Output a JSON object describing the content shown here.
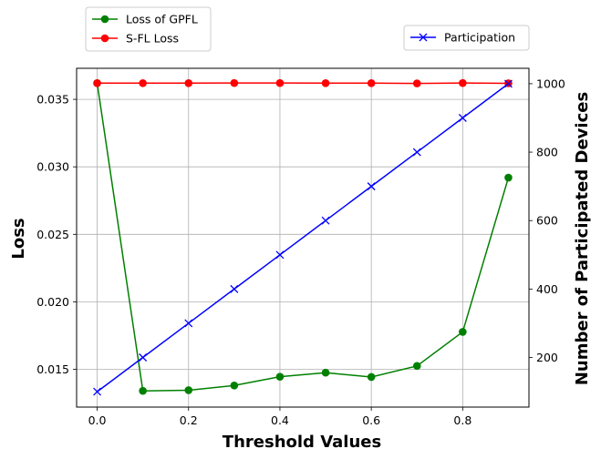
{
  "chart_data": {
    "type": "line",
    "xlabel": "Threshold Values",
    "ylabel_left": "Loss",
    "ylabel_right": "Number of Participated Devices",
    "x": [
      0.0,
      0.1,
      0.2,
      0.3,
      0.4,
      0.5,
      0.6,
      0.7,
      0.8,
      0.9
    ],
    "x_ticks": [
      "0.0",
      "0.2",
      "0.4",
      "0.6",
      "0.8"
    ],
    "x_tick_values": [
      0.0,
      0.2,
      0.4,
      0.6,
      0.8
    ],
    "xlim": [
      -0.045,
      0.945
    ],
    "ylim_left": [
      0.0122,
      0.0373
    ],
    "y_left_ticks": [
      "0.015",
      "0.020",
      "0.025",
      "0.030",
      "0.035"
    ],
    "y_left_tick_values": [
      0.015,
      0.02,
      0.025,
      0.03,
      0.035
    ],
    "ylim_right": [
      55,
      1045
    ],
    "y_right_ticks": [
      "200",
      "400",
      "600",
      "800",
      "1000"
    ],
    "y_right_tick_values": [
      200,
      400,
      600,
      800,
      1000
    ],
    "grid": true,
    "series": [
      {
        "name": "Loss of GPFL",
        "axis": "left",
        "color": "#008000",
        "marker": "circle",
        "values": [
          0.0362,
          0.0134,
          0.01345,
          0.0138,
          0.01445,
          0.01475,
          0.01443,
          0.01525,
          0.01777,
          0.0292
        ]
      },
      {
        "name": "S-FL Loss",
        "axis": "left",
        "color": "#ff0000",
        "marker": "circle",
        "values": [
          0.0362,
          0.0362,
          0.0362,
          0.03621,
          0.03621,
          0.0362,
          0.0362,
          0.03618,
          0.03621,
          0.03619
        ]
      },
      {
        "name": "Participation",
        "axis": "right",
        "color": "#0000ff",
        "marker": "x",
        "values": [
          100,
          200,
          300,
          400,
          500,
          600,
          700,
          800,
          900,
          1000
        ]
      }
    ],
    "legend_left": [
      "Loss of GPFL",
      "S-FL Loss"
    ],
    "legend_right": [
      "Participation"
    ],
    "legend_placement_left": "top-left (above plot)",
    "legend_placement_right": "top-right (above plot)"
  }
}
